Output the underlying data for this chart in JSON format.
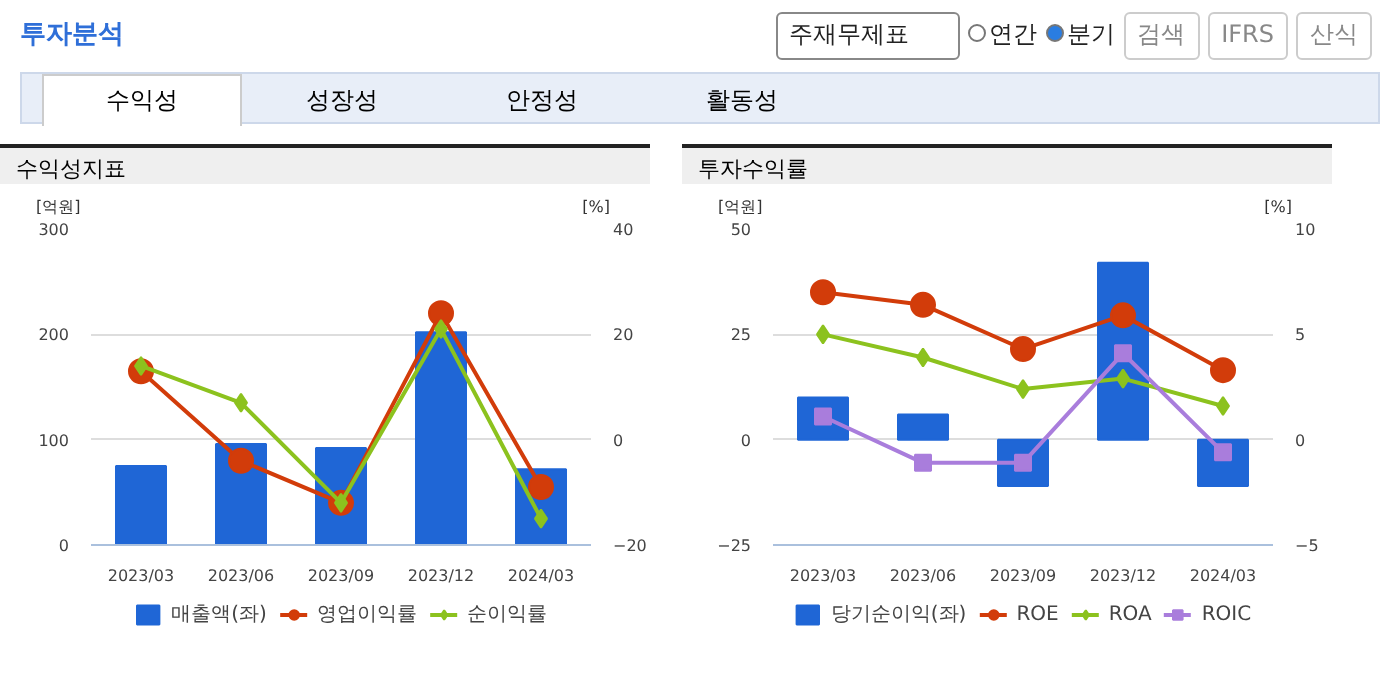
{
  "chart_data": [
    {
      "type": "other",
      "title": "투자분석",
      "annotations": [
        "주재무제표",
        "연간",
        "분기",
        "검색",
        "IFRS",
        "산식",
        "수익성",
        "성장성",
        "안정성",
        "활동성"
      ]
    },
    {
      "type": "bar",
      "title": "수익성지표",
      "ylabel": "[억원]",
      "y2label": "[%]",
      "categories": [
        "2023/03",
        "2023/06",
        "2023/09",
        "2023/12",
        "2024/03"
      ],
      "ylim": [
        0,
        300
      ],
      "yticks": [
        0,
        100,
        200,
        300
      ],
      "y2lim": [
        -20,
        40
      ],
      "y2ticks": [
        -20,
        0,
        20,
        40
      ],
      "grid": "y",
      "legend": "bottom",
      "series": [
        {
          "name": "매출액(좌)",
          "type": "bar",
          "color": "#1f66d6",
          "values": [
            75,
            96,
            92,
            202,
            72
          ]
        },
        {
          "name": "영업이익률",
          "type": "line",
          "axis": "y2",
          "marker": "circle",
          "color": "#d23c0a",
          "values": [
            13,
            -4,
            -12,
            24,
            -9
          ]
        },
        {
          "name": "순이익률",
          "type": "line",
          "axis": "y2",
          "marker": "diamond",
          "color": "#8cc21e",
          "values": [
            14,
            7,
            -12,
            21,
            -15
          ]
        }
      ]
    },
    {
      "type": "bar",
      "title": "투자수익률",
      "ylabel": "[억원]",
      "y2label": "[%]",
      "categories": [
        "2023/03",
        "2023/06",
        "2023/09",
        "2023/12",
        "2024/03"
      ],
      "ylim": [
        -25,
        50
      ],
      "yticks": [
        -25,
        0,
        25,
        50
      ],
      "y2lim": [
        -5,
        10
      ],
      "y2ticks": [
        -5,
        0,
        5,
        10
      ],
      "grid": "y",
      "legend": "bottom",
      "series": [
        {
          "name": "당기순이익(좌)",
          "type": "bar",
          "color": "#1f66d6",
          "values": [
            10,
            6,
            -11,
            42,
            -11
          ]
        },
        {
          "name": "ROE",
          "type": "line",
          "axis": "y2",
          "marker": "circle",
          "color": "#d23c0a",
          "values": [
            7.0,
            6.4,
            4.3,
            5.9,
            3.3
          ]
        },
        {
          "name": "ROA",
          "type": "line",
          "axis": "y2",
          "marker": "diamond",
          "color": "#8cc21e",
          "values": [
            5.0,
            3.9,
            2.4,
            2.9,
            1.6
          ]
        },
        {
          "name": "ROIC",
          "type": "line",
          "axis": "y2",
          "marker": "square",
          "color": "#a97ddc",
          "values": [
            1.1,
            -1.1,
            -1.1,
            4.1,
            -0.6
          ]
        }
      ]
    }
  ]
}
